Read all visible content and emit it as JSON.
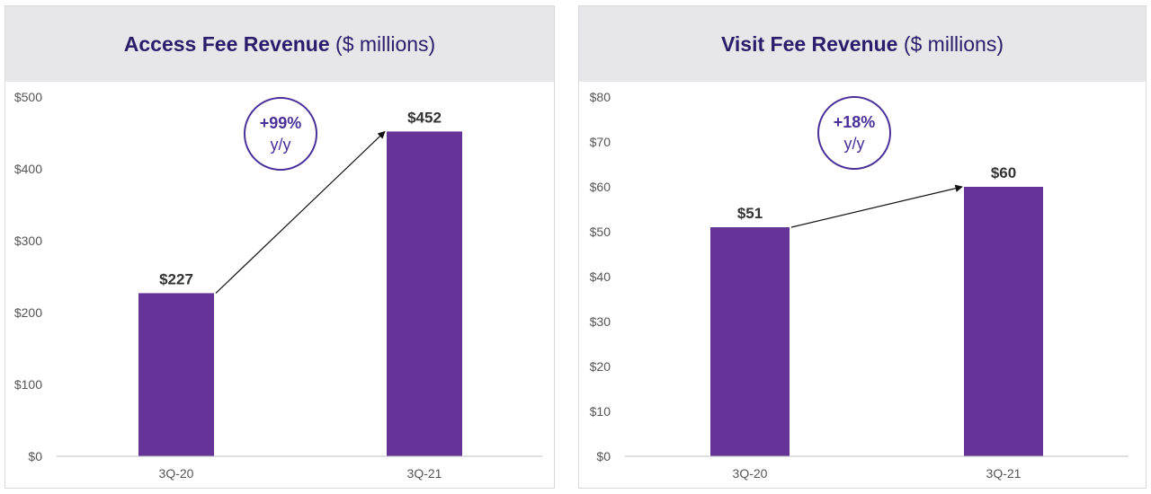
{
  "colors": {
    "bar": "#663399",
    "title": "#2b1d6b",
    "growth": "#4b2f9a",
    "header_bg": "#e7e7ea"
  },
  "chart_data": [
    {
      "type": "bar",
      "title": "Access Fee Revenue",
      "unit": "($ millions)",
      "categories": [
        "3Q-20",
        "3Q-21"
      ],
      "values": [
        227,
        452
      ],
      "value_labels": [
        "$227",
        "$452"
      ],
      "ylim": [
        0,
        500
      ],
      "yticks": [
        0,
        100,
        200,
        300,
        400,
        500
      ],
      "ytick_labels": [
        "$0",
        "$100",
        "$200",
        "$300",
        "$400",
        "$500"
      ],
      "growth": {
        "value": "+99%",
        "unit": "y/y"
      },
      "grid": false
    },
    {
      "type": "bar",
      "title": "Visit Fee Revenue",
      "unit": "($ millions)",
      "categories": [
        "3Q-20",
        "3Q-21"
      ],
      "values": [
        51,
        60
      ],
      "value_labels": [
        "$51",
        "$60"
      ],
      "ylim": [
        0,
        80
      ],
      "yticks": [
        0,
        10,
        20,
        30,
        40,
        50,
        60,
        70,
        80
      ],
      "ytick_labels": [
        "$0",
        "$10",
        "$20",
        "$30",
        "$40",
        "$50",
        "$60",
        "$70",
        "$80"
      ],
      "growth": {
        "value": "+18%",
        "unit": "y/y"
      },
      "grid": false
    }
  ]
}
